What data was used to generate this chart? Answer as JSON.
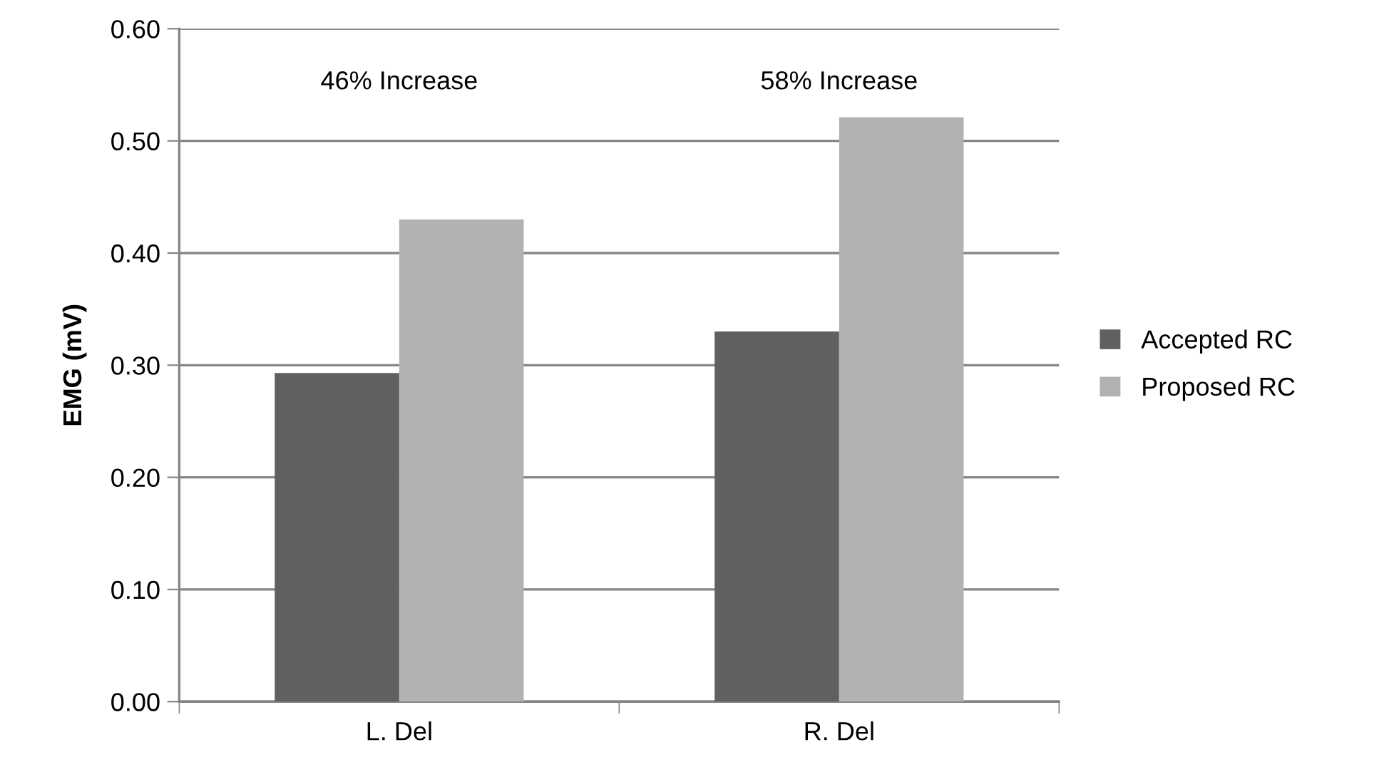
{
  "chart_data": {
    "type": "bar",
    "ylabel": "EMG (mV)",
    "categories": [
      "L. Del",
      "R. Del"
    ],
    "series": [
      {
        "name": "Accepted RC",
        "color": "#606060",
        "values": [
          0.293,
          0.33
        ]
      },
      {
        "name": "Proposed RC",
        "color": "#b2b2b2",
        "values": [
          0.43,
          0.521
        ]
      }
    ],
    "ylim": [
      0,
      0.6
    ],
    "yticks": [
      {
        "value": 0,
        "label": "0.00"
      },
      {
        "value": 0.1,
        "label": "0.10"
      },
      {
        "value": 0.2,
        "label": "0.20"
      },
      {
        "value": 0.3,
        "label": "0.30"
      },
      {
        "value": 0.4,
        "label": "0.40"
      },
      {
        "value": 0.5,
        "label": "0.50"
      },
      {
        "value": 0.6,
        "label": "0.60"
      }
    ],
    "grid": "y",
    "legend": "right",
    "annotations": [
      "46% Increase",
      "58% Increase"
    ]
  }
}
